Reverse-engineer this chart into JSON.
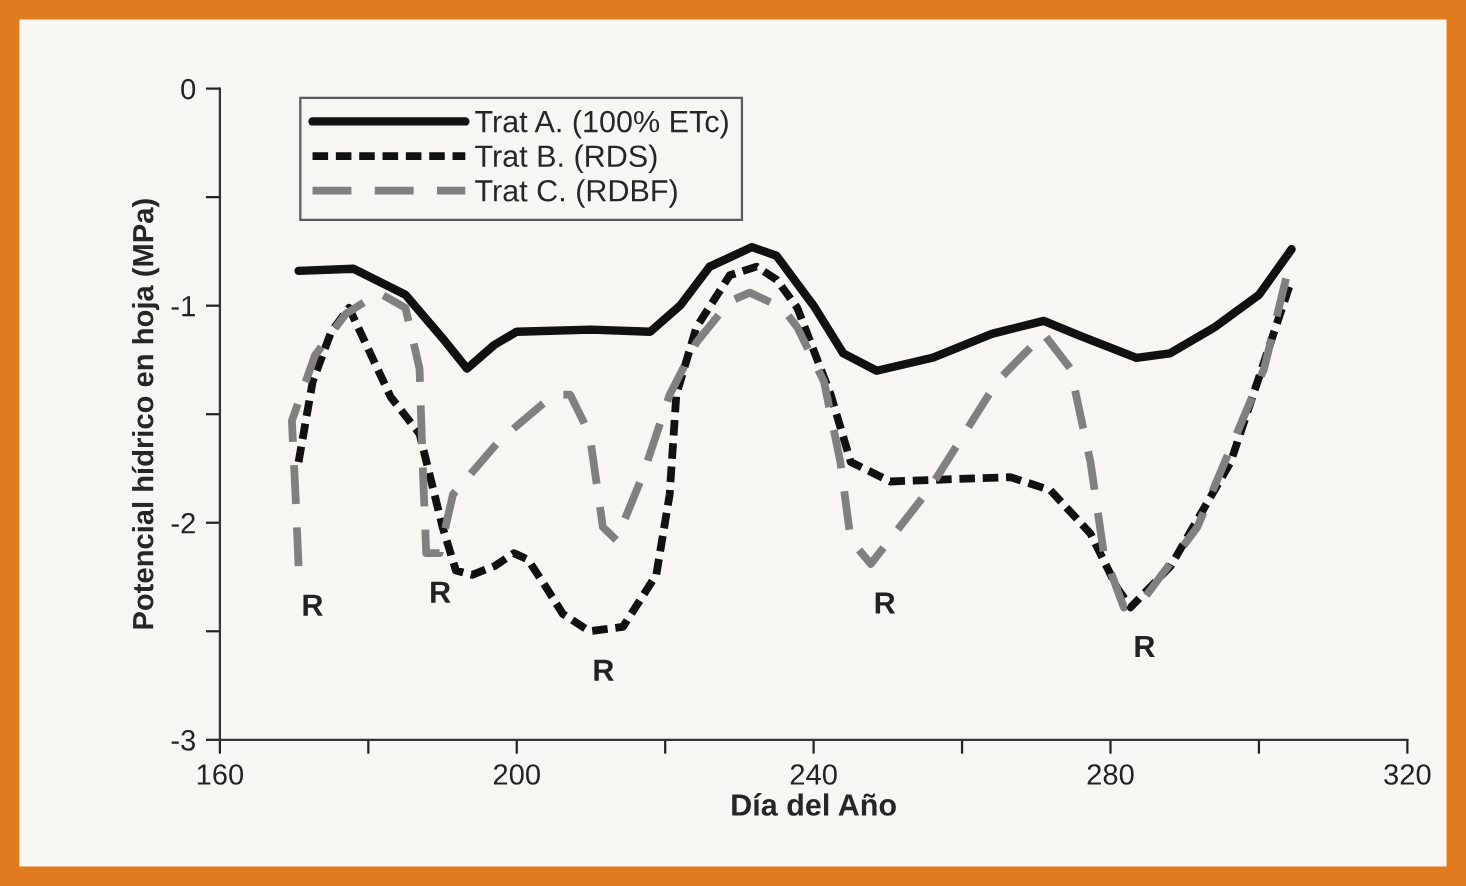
{
  "chart_data": {
    "type": "line",
    "xlabel": "Día del Año",
    "ylabel": "Potencial hídrico en hoja (MPa)",
    "xlim": [
      160,
      320
    ],
    "xticks": [
      160,
      {
        "value": 180,
        "label": null
      },
      200,
      {
        "value": 220,
        "label": null
      },
      240,
      {
        "value": 260,
        "label": null
      },
      280,
      {
        "value": 300,
        "label": null
      },
      320
    ],
    "ylim": [
      -3,
      0
    ],
    "yticks": [
      -3,
      {
        "value": -2.5,
        "label": null
      },
      -2,
      {
        "value": -1.5,
        "label": null
      },
      -1,
      {
        "value": -0.5,
        "label": null
      },
      0
    ],
    "grid": false,
    "legend": "top left",
    "marker": "none",
    "series": [
      {
        "name": "Trat A. (100% ETc)",
        "color": "#111111",
        "line_style": "solid",
        "x": [
          170.6,
          178,
          185,
          190,
          193.3,
          197,
          200,
          210,
          218,
          222,
          226,
          231.7,
          235,
          240,
          244,
          248.5,
          256,
          264,
          271,
          276,
          283.5,
          288,
          294,
          300,
          304.4
        ],
        "values": [
          -0.84,
          -0.83,
          -0.95,
          -1.15,
          -1.29,
          -1.18,
          -1.12,
          -1.11,
          -1.12,
          -1.0,
          -0.82,
          -0.73,
          -0.77,
          -1.0,
          -1.22,
          -1.3,
          -1.24,
          -1.13,
          -1.07,
          -1.14,
          -1.24,
          -1.22,
          -1.1,
          -0.95,
          -0.74
        ]
      },
      {
        "name": "Trat B. (RDS)",
        "color": "#111111",
        "line_style": "dotted",
        "x": [
          170.6,
          172.5,
          175,
          177.4,
          180,
          183,
          186.9,
          190,
          191.8,
          194,
          197,
          199.6,
          201.5,
          204,
          206.2,
          209.8,
          214.3,
          218.8,
          220.6,
          221.5,
          224.2,
          228.7,
          232.3,
          235,
          237.8,
          242.3,
          245,
          250.3,
          258,
          266.5,
          271.9,
          277.3,
          280.9,
          282.7,
          288.1,
          296.2,
          304.3
        ],
        "values": [
          -1.72,
          -1.35,
          -1.12,
          -1.01,
          -1.2,
          -1.42,
          -1.59,
          -2.02,
          -2.22,
          -2.24,
          -2.2,
          -2.14,
          -2.17,
          -2.3,
          -2.42,
          -2.5,
          -2.48,
          -2.24,
          -1.87,
          -1.41,
          -1.1,
          -0.86,
          -0.82,
          -0.88,
          -1.01,
          -1.41,
          -1.72,
          -1.81,
          -1.8,
          -1.79,
          -1.85,
          -2.05,
          -2.3,
          -2.39,
          -2.2,
          -1.72,
          -0.89
        ]
      },
      {
        "name": "Trat C. (RDBF)",
        "color": "#808080",
        "line_style": "dashed",
        "x": [
          170.6,
          170.2,
          169.7,
          172.8,
          176.9,
          181.4,
          185,
          186.9,
          187.3,
          187.8,
          189.6,
          191.4,
          197.7,
          205,
          207.2,
          209.8,
          211.6,
          213.4,
          217,
          220.6,
          224.2,
          228.7,
          231.4,
          235.8,
          237.8,
          241.4,
          243.6,
          245,
          247.7,
          255.7,
          264.7,
          271,
          274.6,
          277.3,
          279.1,
          281.8,
          284.5,
          291.7,
          300.7,
          304.4
        ],
        "values": [
          -2.2,
          -1.88,
          -1.53,
          -1.23,
          -1.04,
          -0.94,
          -1.01,
          -1.29,
          -1.71,
          -2.14,
          -2.14,
          -1.87,
          -1.62,
          -1.41,
          -1.41,
          -1.59,
          -2.02,
          -2.08,
          -1.78,
          -1.41,
          -1.17,
          -0.98,
          -0.94,
          -1.01,
          -1.1,
          -1.35,
          -1.72,
          -2.08,
          -2.19,
          -1.84,
          -1.35,
          -1.13,
          -1.29,
          -1.72,
          -2.14,
          -2.39,
          -2.35,
          -2.02,
          -1.29,
          -0.77
        ]
      }
    ],
    "annotations": [
      {
        "text": "R",
        "x": 170.6,
        "y": -2.2
      },
      {
        "text": "R",
        "x": 187.8,
        "y": -2.14
      },
      {
        "text": "R",
        "x": 209.8,
        "y": -2.5
      },
      {
        "text": "R",
        "x": 247.7,
        "y": -2.19
      },
      {
        "text": "R",
        "x": 282.7,
        "y": -2.39
      }
    ]
  }
}
